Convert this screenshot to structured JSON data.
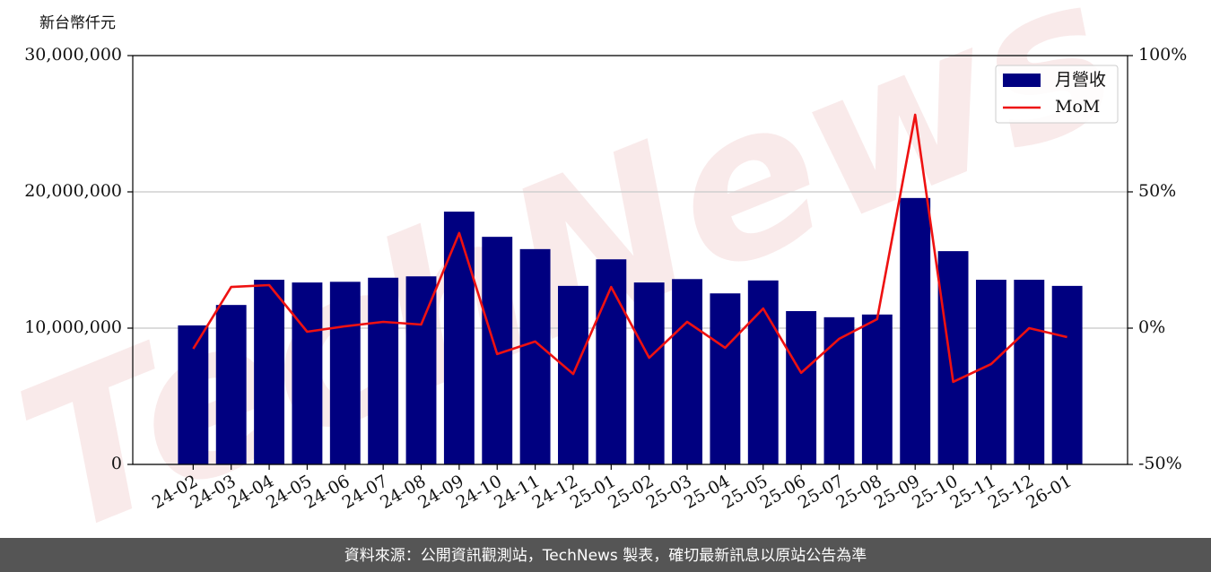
{
  "chart_data": {
    "type": "bar",
    "y_label": "新台幣仟元",
    "watermark": "TechNews",
    "source": "資料來源：公開資訊觀測站，TechNews 製表，確切最新訊息以原站公告為準",
    "categories": [
      "24-02",
      "24-03",
      "24-04",
      "24-05",
      "24-06",
      "24-07",
      "24-08",
      "24-09",
      "24-10",
      "24-11",
      "24-12",
      "25-01",
      "25-02",
      "25-03",
      "25-04",
      "25-05",
      "25-06",
      "25-07",
      "25-08",
      "25-09",
      "25-10",
      "25-11",
      "25-12",
      "26-01"
    ],
    "series": [
      {
        "name": "月營收",
        "type": "bar",
        "color": "#000080",
        "values": [
          10200000,
          11700000,
          13550000,
          13350000,
          13400000,
          13700000,
          13800000,
          18550000,
          16700000,
          15800000,
          13100000,
          15050000,
          13350000,
          13600000,
          12550000,
          13500000,
          11250000,
          10800000,
          11000000,
          19550000,
          15650000,
          13550000,
          13550000,
          13100000
        ]
      },
      {
        "name": "MoM",
        "type": "line",
        "axis": "y2",
        "color": "#ee1111",
        "values": [
          -7.6,
          15.1,
          15.8,
          -1.3,
          0.7,
          2.3,
          1.3,
          34.9,
          -9.5,
          -4.9,
          -16.8,
          15.1,
          -10.9,
          2.3,
          -7.2,
          7.2,
          -16.4,
          -3.9,
          3.3,
          78.3,
          -19.7,
          -13.2,
          0,
          -3.3
        ]
      }
    ],
    "ylim": [
      0,
      30000000
    ],
    "yticks": [
      0,
      {
        "value": 10000000,
        "label": "10,000,000"
      },
      {
        "value": 20000000,
        "label": "20,000,000"
      },
      {
        "value": 30000000,
        "label": "30,000,000"
      }
    ],
    "y2lim": [
      -50,
      100
    ],
    "y2ticks": [
      {
        "value": -50,
        "label": "-50%"
      },
      {
        "value": 0,
        "label": "0%"
      },
      {
        "value": 50,
        "label": "50%"
      },
      {
        "value": 100,
        "label": "100%"
      }
    ],
    "grid": true,
    "legend": "upper right"
  }
}
